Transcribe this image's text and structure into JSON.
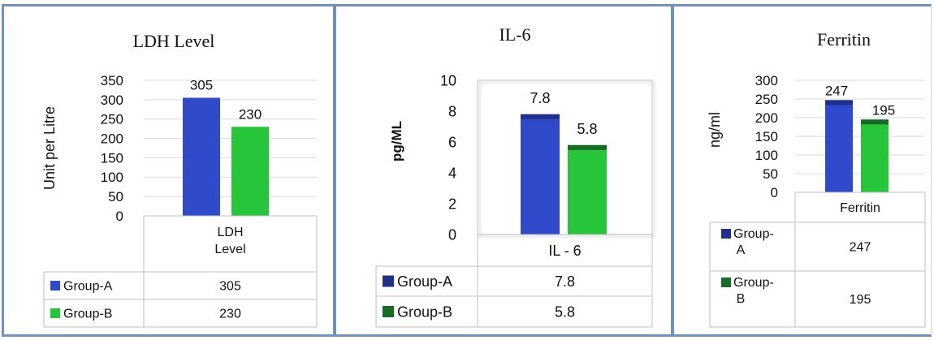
{
  "colors": {
    "group_a": "#2f4bcc",
    "group_a_dark": "#1f2f8a",
    "group_b": "#27c63a",
    "group_b_dark": "#176b24",
    "grid": "#d9d9d9",
    "table_line": "#bfbfbf",
    "frame": "#6f91c2"
  },
  "chart_data": [
    {
      "type": "bar",
      "title": "LDH Level",
      "ylabel": "Unit  per Litre",
      "categories": [
        "LDH Level"
      ],
      "category_label_lines": [
        "LDH",
        "Level"
      ],
      "series": [
        {
          "name": "Group-A",
          "values": [
            305
          ]
        },
        {
          "name": "Group-B",
          "values": [
            230
          ]
        }
      ],
      "value_labels": [
        "305",
        "230"
      ],
      "yticks": [
        "0",
        "50",
        "100",
        "150",
        "200",
        "250",
        "300",
        "350"
      ],
      "ylim": [
        0,
        350
      ],
      "grid": true,
      "legend": "data table below"
    },
    {
      "type": "bar",
      "title": "IL-6",
      "ylabel": "pg/ML",
      "categories": [
        "IL - 6"
      ],
      "series": [
        {
          "name": "Group-A",
          "values": [
            7.8
          ]
        },
        {
          "name": "Group-B",
          "values": [
            5.8
          ]
        }
      ],
      "value_labels": [
        "7.8",
        "5.8"
      ],
      "yticks": [
        "0",
        "2",
        "4",
        "6",
        "8",
        "10"
      ],
      "ylim": [
        0,
        10
      ],
      "grid": false,
      "legend": "data table below"
    },
    {
      "type": "bar",
      "title": "Ferritin",
      "ylabel": "ng/ml",
      "categories": [
        "Ferritin"
      ],
      "series": [
        {
          "name": "Group-A",
          "values": [
            247
          ]
        },
        {
          "name": "Group-B",
          "values": [
            195
          ]
        }
      ],
      "value_labels": [
        "247",
        "195"
      ],
      "yticks": [
        "0",
        "50",
        "100",
        "150",
        "200",
        "250",
        "300"
      ],
      "ylim": [
        0,
        300
      ],
      "grid": true,
      "legend": "data table below",
      "legend_name_lines": [
        [
          "Group-",
          "A"
        ],
        [
          "Group-",
          "B"
        ]
      ]
    }
  ]
}
